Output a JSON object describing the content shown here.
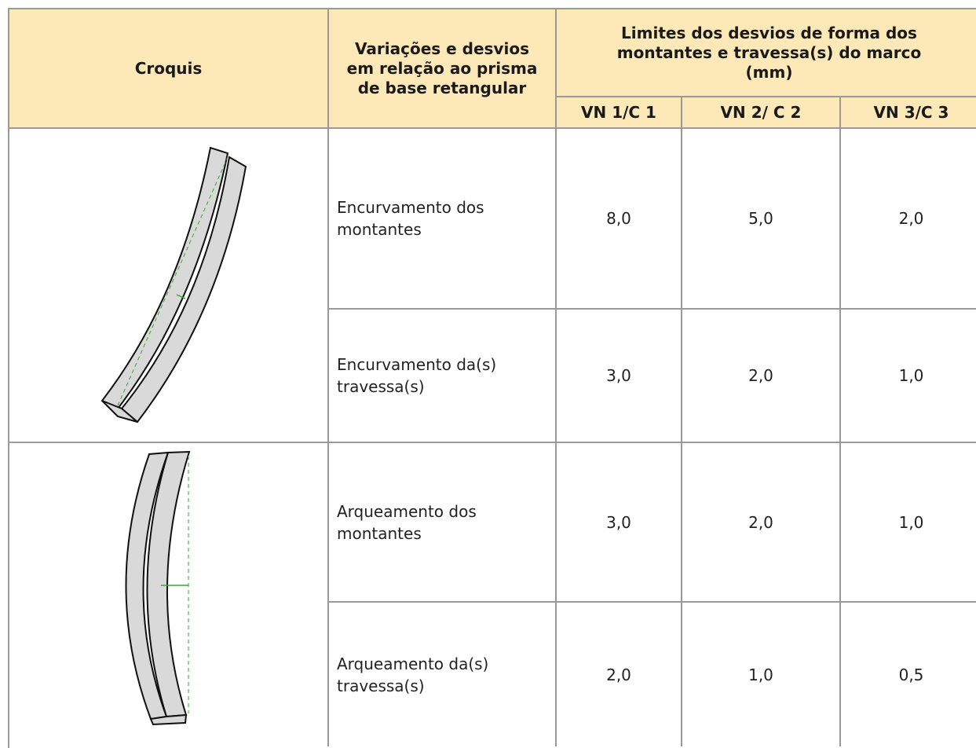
{
  "table": {
    "header": {
      "croquis": "Croquis",
      "variacoes": "Variações e desvios em relação ao prisma de base retangular",
      "limites": "Limites dos desvios de forma dos montantes e travessa(s) do marco (mm)",
      "classes": [
        "VN 1/C 1",
        "VN 2/ C 2",
        "VN 3/C 3"
      ]
    },
    "rows": [
      {
        "label": "Encurvamento dos montantes",
        "values": [
          "8,0",
          "5,0",
          "2,0"
        ]
      },
      {
        "label": "Encurvamento da(s) travessa(s)",
        "values": [
          "3,0",
          "2,0",
          "1,0"
        ]
      },
      {
        "label": "Arqueamento dos montantes",
        "values": [
          "3,0",
          "2,0",
          "1,0"
        ]
      },
      {
        "label": "Arqueamento da(s) travessa(s)",
        "values": [
          "2,0",
          "1,0",
          "0,5"
        ]
      }
    ]
  }
}
